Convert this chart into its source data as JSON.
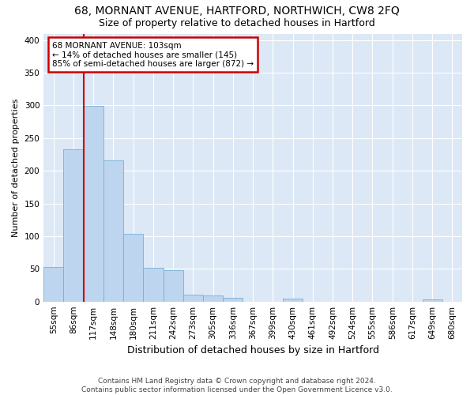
{
  "title": "68, MORNANT AVENUE, HARTFORD, NORTHWICH, CW8 2FQ",
  "subtitle": "Size of property relative to detached houses in Hartford",
  "xlabel": "Distribution of detached houses by size in Hartford",
  "ylabel": "Number of detached properties",
  "footer_line1": "Contains HM Land Registry data © Crown copyright and database right 2024.",
  "footer_line2": "Contains public sector information licensed under the Open Government Licence v3.0.",
  "categories": [
    "55sqm",
    "86sqm",
    "117sqm",
    "148sqm",
    "180sqm",
    "211sqm",
    "242sqm",
    "273sqm",
    "305sqm",
    "336sqm",
    "367sqm",
    "399sqm",
    "430sqm",
    "461sqm",
    "492sqm",
    "524sqm",
    "555sqm",
    "586sqm",
    "617sqm",
    "649sqm",
    "680sqm"
  ],
  "bar_heights": [
    53,
    233,
    299,
    216,
    103,
    52,
    48,
    10,
    9,
    6,
    0,
    0,
    4,
    0,
    0,
    0,
    0,
    0,
    0,
    3,
    0
  ],
  "bar_color": "#bdd5ee",
  "bar_edge_color": "#7aafd4",
  "annotation_line1": "68 MORNANT AVENUE: 103sqm",
  "annotation_line2": "← 14% of detached houses are smaller (145)",
  "annotation_line3": "85% of semi-detached houses are larger (872) →",
  "annotation_box_color": "#ffffff",
  "annotation_box_edge_color": "#cc0000",
  "vline_x": 1.5,
  "vline_color": "#cc0000",
  "ylim": [
    0,
    410
  ],
  "yticks": [
    0,
    50,
    100,
    150,
    200,
    250,
    300,
    350,
    400
  ],
  "grid_color": "#ffffff",
  "bg_color": "#dce8f5",
  "title_fontsize": 10,
  "subtitle_fontsize": 9,
  "xlabel_fontsize": 9,
  "ylabel_fontsize": 8,
  "tick_fontsize": 7.5,
  "footer_fontsize": 6.5
}
